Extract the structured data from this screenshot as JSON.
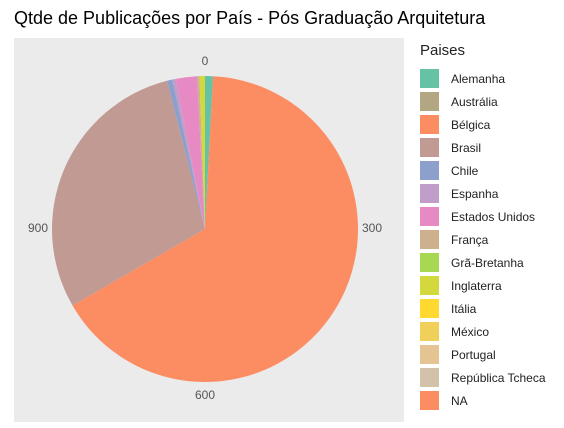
{
  "chart_data": {
    "type": "pie",
    "title": "Qtde de Publicações por País - Pós Graduação Arquitetura",
    "legend_title": "Paises",
    "legend_position": "right",
    "background": "#ebebeb",
    "axis_ticks": [
      "0",
      "300",
      "600",
      "900"
    ],
    "axis_max": 1200,
    "slices": [
      {
        "name": "Alemanha",
        "value": 10,
        "color": "#66c2a5"
      },
      {
        "name": "Austrália",
        "value": 0,
        "color": "#b3a783"
      },
      {
        "name": "Bélgica",
        "value": 790,
        "color": "#fc8d62"
      },
      {
        "name": "Brasil",
        "value": 352,
        "color": "#c29a94"
      },
      {
        "name": "Chile",
        "value": 7,
        "color": "#8da0cb"
      },
      {
        "name": "Espanha",
        "value": 4,
        "color": "#c19ec9"
      },
      {
        "name": "Estados Unidos",
        "value": 27,
        "color": "#e78ac3"
      },
      {
        "name": "França",
        "value": 3,
        "color": "#cdb08e"
      },
      {
        "name": "Grã-Bretanha",
        "value": 0,
        "color": "#a6d854"
      },
      {
        "name": "Inglaterra",
        "value": 7,
        "color": "#d3d93d"
      },
      {
        "name": "Itália",
        "value": 0,
        "color": "#ffd92f"
      },
      {
        "name": "México",
        "value": 0,
        "color": "#f0d05a"
      },
      {
        "name": "Portugal",
        "value": 0,
        "color": "#e5c494"
      },
      {
        "name": "República Tcheca",
        "value": 0,
        "color": "#d3c2aa"
      },
      {
        "name": "NA",
        "value": 0,
        "color": "#fc8d62"
      }
    ]
  }
}
